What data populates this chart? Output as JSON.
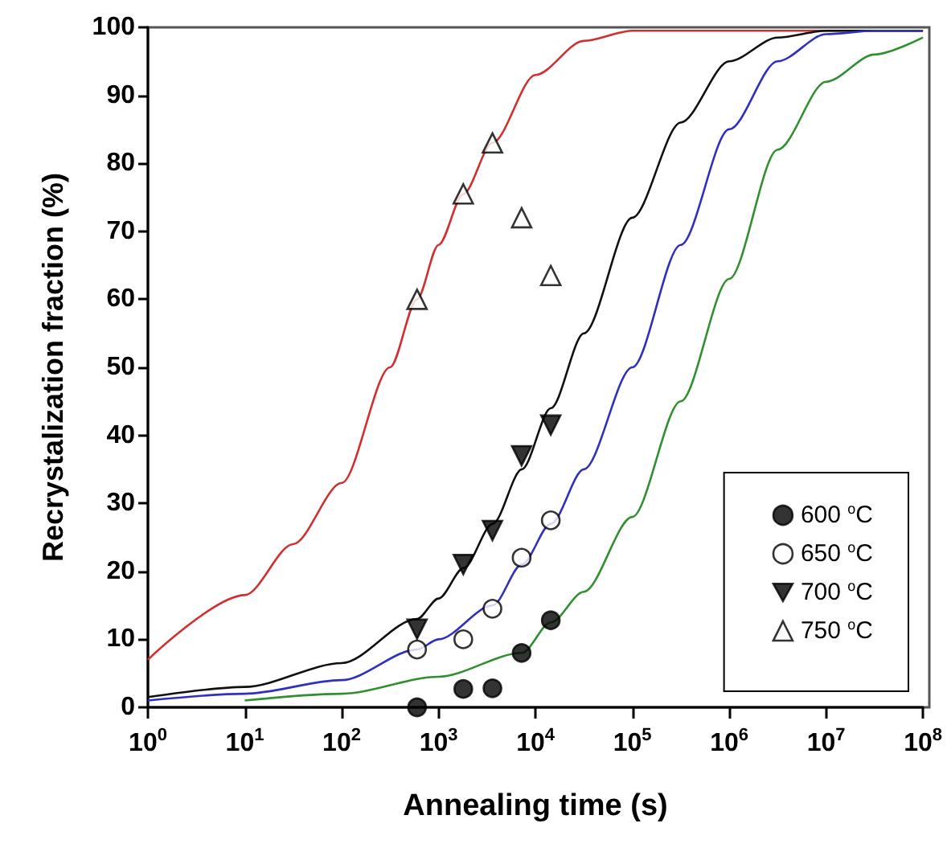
{
  "chart_data": {
    "type": "scatter",
    "xlabel": "Annealing time (s)",
    "ylabel": "Recrystalization fraction (%)",
    "log": "x",
    "xlim": [
      1,
      100000000
    ],
    "ylim": [
      0,
      100
    ],
    "xticks": [
      {
        "value": 1,
        "label": "10$^{0}$"
      },
      {
        "value": 10,
        "label": "10$^{1}$"
      },
      {
        "value": 100,
        "label": "10$^{2}$"
      },
      {
        "value": 1000,
        "label": "10$^{3}$"
      },
      {
        "value": 10000,
        "label": "10$^{4}$"
      },
      {
        "value": 100000,
        "label": "10$^{5}$"
      },
      {
        "value": 1000000,
        "label": "10$^{6}$"
      },
      {
        "value": 10000000,
        "label": "10$^{7}$"
      },
      {
        "value": 100000000,
        "label": "10$^{8}$"
      }
    ],
    "yticks": [
      0,
      10,
      20,
      30,
      40,
      50,
      60,
      70,
      80,
      90,
      100
    ],
    "grid": false,
    "legend": "bottom right",
    "series": [
      {
        "type": "line",
        "color": "#d03030",
        "marker": "none",
        "x": [
          1,
          10,
          31.6,
          100,
          316,
          600,
          1000,
          1800,
          3600,
          10000,
          31600,
          100000,
          1000000,
          100000000
        ],
        "values": [
          7,
          16.5,
          24,
          33,
          50,
          60,
          68,
          75.5,
          83,
          93,
          98,
          99.5,
          99.5,
          99.5
        ]
      },
      {
        "type": "line",
        "color": "#101010",
        "marker": "none",
        "x": [
          1,
          10,
          100,
          600,
          1000,
          1820,
          3630,
          7240,
          14450,
          31600,
          100000,
          316000,
          1000000,
          3160000,
          10000000,
          100000000
        ],
        "values": [
          1.5,
          3,
          6.5,
          13,
          16,
          20.5,
          27,
          35,
          44,
          55,
          72,
          86,
          95,
          98.5,
          99.5,
          99.5
        ]
      },
      {
        "type": "line",
        "color": "#3030c0",
        "marker": "none",
        "x": [
          1,
          10,
          100,
          600,
          1000,
          3630,
          7240,
          14450,
          31600,
          100000,
          316000,
          1000000,
          3160000,
          10000000,
          31600000,
          100000000
        ],
        "values": [
          1,
          2,
          4,
          8.5,
          10,
          15,
          21,
          27,
          35,
          50,
          68,
          85,
          95,
          99,
          99.5,
          99.5
        ]
      },
      {
        "type": "line",
        "color": "#309030",
        "marker": "none",
        "x": [
          10,
          100,
          1000,
          7240,
          14450,
          31600,
          100000,
          316000,
          1000000,
          3160000,
          10000000,
          31600000,
          100000000
        ],
        "values": [
          1,
          2,
          4.5,
          8,
          12.5,
          17,
          28,
          45,
          63,
          82,
          92,
          96,
          98.5
        ]
      },
      {
        "name": "600 $^{o}$C",
        "color": "#000000",
        "marker": "circle",
        "x": [
          600,
          1800,
          3600,
          7200,
          14400
        ],
        "values": [
          0,
          2.7,
          2.8,
          8,
          12.8
        ]
      },
      {
        "name": "650 $^{o}$C",
        "color": "#ffffff",
        "marker": "circle",
        "x": [
          600,
          1800,
          3600,
          7200,
          14400
        ],
        "values": [
          8.5,
          10,
          14.5,
          22,
          27.5
        ]
      },
      {
        "name": "700 $^{o}$C",
        "color": "#000000",
        "marker": "triangle-down",
        "x": [
          600,
          1800,
          3600,
          7200,
          14400
        ],
        "values": [
          11.5,
          21,
          26,
          37,
          41.5
        ]
      },
      {
        "name": "750 $^{o}$C",
        "color": "#ffffff",
        "marker": "triangle",
        "x": [
          600,
          1800,
          3600,
          7200,
          14400
        ],
        "values": [
          60,
          75.5,
          83,
          72,
          63.5
        ]
      }
    ]
  }
}
